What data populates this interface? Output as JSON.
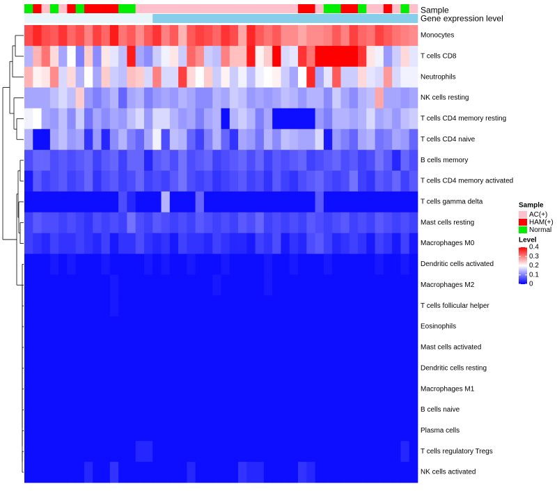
{
  "chart_data": {
    "type": "heatmap",
    "title": "",
    "colorscale": {
      "low": "#0000FF",
      "mid": "#FFFFFF",
      "high": "#FF0000",
      "min": 0,
      "mid_value": 0.2,
      "max": 0.4
    },
    "annotation_tracks": [
      {
        "label": "Sample"
      },
      {
        "label": "Gene expression level"
      }
    ],
    "sample_types": [
      "N",
      "H",
      "A",
      "N",
      "A",
      "H",
      "N",
      "H",
      "H",
      "H",
      "H",
      "N",
      "N",
      "A",
      "A",
      "A",
      "A",
      "A",
      "A",
      "A",
      "A",
      "A",
      "A",
      "A",
      "A",
      "A",
      "A",
      "A",
      "A",
      "A",
      "A",
      "A",
      "H",
      "H",
      "A",
      "N",
      "N",
      "H",
      "H",
      "N",
      "A",
      "A",
      "H",
      "A",
      "N",
      "A"
    ],
    "expr_groups": [
      "L",
      "L",
      "L",
      "L",
      "L",
      "L",
      "L",
      "L",
      "L",
      "L",
      "L",
      "L",
      "L",
      "L",
      "L",
      "H",
      "H",
      "H",
      "H",
      "H",
      "H",
      "H",
      "H",
      "H",
      "H",
      "H",
      "H",
      "H",
      "H",
      "H",
      "H",
      "H",
      "H",
      "H",
      "H",
      "H",
      "H",
      "H",
      "H",
      "H",
      "H",
      "H",
      "H",
      "H",
      "H",
      "H"
    ],
    "expr_group_colors": {
      "L": "#EAF4FB",
      "H": "#87CEEB"
    },
    "cell_types": [
      "Monocytes",
      "T cells CD8",
      "Neutrophils",
      "NK cells resting",
      "T cells CD4 memory resting",
      "T cells CD4 naive",
      "B cells memory",
      "T cells CD4 memory activated",
      "T cells gamma delta",
      "Mast cells resting",
      "Macrophages M0",
      "Dendritic cells activated",
      "Macrophages M2",
      "T cells follicular helper",
      "Eosinophils",
      "Mast cells activated",
      "Dendritic cells resting",
      "Macrophages M1",
      "B cells naive",
      "Plasma cells",
      "T cells regulatory  Tregs",
      "NK cells activated"
    ],
    "values": [
      [
        0.34,
        0.37,
        0.34,
        0.33,
        0.36,
        0.32,
        0.34,
        0.3,
        0.35,
        0.32,
        0.38,
        0.31,
        0.33,
        0.29,
        0.33,
        0.36,
        0.3,
        0.33,
        0.26,
        0.33,
        0.35,
        0.34,
        0.32,
        0.36,
        0.34,
        0.27,
        0.37,
        0.33,
        0.31,
        0.33,
        0.29,
        0.29,
        0.27,
        0.29,
        0.29,
        0.3,
        0.33,
        0.3,
        0.35,
        0.32,
        0.31,
        0.35,
        0.33,
        0.31,
        0.3,
        0.29
      ],
      [
        0.14,
        0.26,
        0.31,
        0.23,
        0.13,
        0.2,
        0.1,
        0.24,
        0.11,
        0.22,
        0.18,
        0.15,
        0.38,
        0.13,
        0.11,
        0.16,
        0.19,
        0.22,
        0.16,
        0.32,
        0.29,
        0.16,
        0.15,
        0.3,
        0.25,
        0.25,
        0.38,
        0.21,
        0.24,
        0.4,
        0.17,
        0.18,
        0.36,
        0.31,
        0.4,
        0.4,
        0.4,
        0.4,
        0.4,
        0.36,
        0.22,
        0.19,
        0.12,
        0.16,
        0.23,
        0.18
      ],
      [
        0.26,
        0.21,
        0.22,
        0.29,
        0.17,
        0.23,
        0.14,
        0.2,
        0.13,
        0.24,
        0.16,
        0.15,
        0.25,
        0.24,
        0.17,
        0.3,
        0.17,
        0.17,
        0.35,
        0.23,
        0.2,
        0.24,
        0.16,
        0.21,
        0.16,
        0.19,
        0.15,
        0.19,
        0.2,
        0.21,
        0.16,
        0.13,
        0.2,
        0.37,
        0.13,
        0.18,
        0.33,
        0.16,
        0.16,
        0.23,
        0.18,
        0.17,
        0.28,
        0.17,
        0.19,
        0.19
      ],
      [
        0.13,
        0.13,
        0.13,
        0.15,
        0.17,
        0.15,
        0.24,
        0.12,
        0.1,
        0.12,
        0.14,
        0.08,
        0.13,
        0.14,
        0.1,
        0.12,
        0.13,
        0.12,
        0.14,
        0.13,
        0.11,
        0.11,
        0.14,
        0.13,
        0.16,
        0.15,
        0.12,
        0.13,
        0.12,
        0.13,
        0.15,
        0.14,
        0.12,
        0.14,
        0.14,
        0.11,
        0.16,
        0.13,
        0.11,
        0.14,
        0.15,
        0.27,
        0.13,
        0.13,
        0.12,
        0.13
      ],
      [
        0.19,
        0.2,
        0.13,
        0.12,
        0.15,
        0.11,
        0.16,
        0.09,
        0.13,
        0.11,
        0.13,
        0.12,
        0.15,
        0.17,
        0.12,
        0.17,
        0.17,
        0.14,
        0.12,
        0.13,
        0.1,
        0.13,
        0.14,
        0.01,
        0.14,
        0.16,
        0.14,
        0.1,
        0.13,
        0.01,
        0.01,
        0.01,
        0.01,
        0.01,
        0.12,
        0.1,
        0.14,
        0.14,
        0.13,
        0.14,
        0.17,
        0.13,
        0.14,
        0.12,
        0.15,
        0.16
      ],
      [
        0.14,
        0.01,
        0.01,
        0.13,
        0.15,
        0.12,
        0.13,
        0.04,
        0.12,
        0.03,
        0.11,
        0.14,
        0.1,
        0.08,
        0.13,
        0.19,
        0.06,
        0.15,
        0.14,
        0.08,
        0.05,
        0.1,
        0.14,
        0.08,
        0.04,
        0.13,
        0.12,
        0.09,
        0.14,
        0.11,
        0.15,
        0.14,
        0.13,
        0.13,
        0.17,
        0.02,
        0.12,
        0.1,
        0.08,
        0.13,
        0.14,
        0.09,
        0.1,
        0.13,
        0.12,
        0.08
      ],
      [
        0.06,
        0.08,
        0.08,
        0.06,
        0.07,
        0.06,
        0.07,
        0.08,
        0.05,
        0.07,
        0.08,
        0.05,
        0.08,
        0.08,
        0.03,
        0.07,
        0.08,
        0.06,
        0.09,
        0.06,
        0.07,
        0.08,
        0.05,
        0.06,
        0.07,
        0.08,
        0.06,
        0.08,
        0.05,
        0.07,
        0.06,
        0.07,
        0.08,
        0.05,
        0.06,
        0.07,
        0.08,
        0.06,
        0.07,
        0.05,
        0.06,
        0.09,
        0.07,
        0.03,
        0.08,
        0.06
      ],
      [
        0.02,
        0.07,
        0.05,
        0.06,
        0.07,
        0.05,
        0.06,
        0.08,
        0.04,
        0.06,
        0.07,
        0.05,
        0.06,
        0.08,
        0.05,
        0.06,
        0.05,
        0.07,
        0.09,
        0.06,
        0.05,
        0.06,
        0.04,
        0.05,
        0.06,
        0.07,
        0.05,
        0.06,
        0.04,
        0.07,
        0.05,
        0.04,
        0.06,
        0.07,
        0.08,
        0.06,
        0.05,
        0.06,
        0.09,
        0.05,
        0.04,
        0.07,
        0.06,
        0.08,
        0.05,
        0.07
      ],
      [
        0.01,
        0.01,
        0.01,
        0.01,
        0.01,
        0.01,
        0.01,
        0.01,
        0.01,
        0.01,
        0.01,
        0.06,
        0.03,
        0.01,
        0.01,
        0.01,
        0.14,
        0.01,
        0.01,
        0.01,
        0.08,
        0.01,
        0.01,
        0.01,
        0.01,
        0.01,
        0.01,
        0.01,
        0.01,
        0.01,
        0.01,
        0.01,
        0.01,
        0.01,
        0.07,
        0.01,
        0.01,
        0.01,
        0.01,
        0.01,
        0.01,
        0.01,
        0.01,
        0.01,
        0.01,
        0.01
      ],
      [
        0.05,
        0.07,
        0.06,
        0.06,
        0.05,
        0.06,
        0.05,
        0.04,
        0.06,
        0.05,
        0.06,
        0.05,
        0.09,
        0.06,
        0.05,
        0.07,
        0.06,
        0.05,
        0.06,
        0.05,
        0.07,
        0.06,
        0.05,
        0.06,
        0.05,
        0.07,
        0.06,
        0.08,
        0.05,
        0.06,
        0.05,
        0.06,
        0.05,
        0.07,
        0.06,
        0.05,
        0.06,
        0.07,
        0.05,
        0.06,
        0.05,
        0.07,
        0.06,
        0.05,
        0.06,
        0.05
      ],
      [
        0.05,
        0.04,
        0.03,
        0.05,
        0.04,
        0.04,
        0.05,
        0.04,
        0.03,
        0.05,
        0.02,
        0.04,
        0.04,
        0.06,
        0.04,
        0.03,
        0.04,
        0.02,
        0.05,
        0.04,
        0.04,
        0.03,
        0.05,
        0.04,
        0.03,
        0.03,
        0.02,
        0.05,
        0.04,
        0.06,
        0.02,
        0.04,
        0.03,
        0.06,
        0.07,
        0.05,
        0.03,
        0.04,
        0.05,
        0.04,
        0.02,
        0.05,
        0.04,
        0.02,
        0.05,
        0.02
      ],
      [
        0.01,
        0.01,
        0.01,
        0.02,
        0.01,
        0.02,
        0.01,
        0.01,
        0.01,
        0.02,
        0.01,
        0.01,
        0.01,
        0.01,
        0.02,
        0.01,
        0.02,
        0.01,
        0.01,
        0.02,
        0.01,
        0.01,
        0.01,
        0.02,
        0.01,
        0.01,
        0.01,
        0.01,
        0.02,
        0.01,
        0.01,
        0.02,
        0.01,
        0.01,
        0.01,
        0.02,
        0.01,
        0.01,
        0.01,
        0.01,
        0.01,
        0.02,
        0.01,
        0.01,
        0.02,
        0.01
      ],
      [
        0.01,
        0.01,
        0.01,
        0.01,
        0.01,
        0.01,
        0.01,
        0.01,
        0.01,
        0.01,
        0.02,
        0.01,
        0.01,
        0.01,
        0.01,
        0.01,
        0.01,
        0.01,
        0.01,
        0.01,
        0.01,
        0.01,
        0.02,
        0.01,
        0.01,
        0.01,
        0.01,
        0.01,
        0.02,
        0.01,
        0.01,
        0.01,
        0.01,
        0.01,
        0.01,
        0.01,
        0.01,
        0.01,
        0.01,
        0.01,
        0.01,
        0.01,
        0.01,
        0.01,
        0.01,
        0.01
      ],
      [
        0.01,
        0.01,
        0.01,
        0.01,
        0.01,
        0.01,
        0.01,
        0.01,
        0.01,
        0.01,
        0.02,
        0.01,
        0.01,
        0.01,
        0.01,
        0.01,
        0.01,
        0.01,
        0.01,
        0.01,
        0.01,
        0.01,
        0.01,
        0.01,
        0.01,
        0.01,
        0.01,
        0.01,
        0.01,
        0.01,
        0.01,
        0.01,
        0.01,
        0.01,
        0.01,
        0.01,
        0.01,
        0.01,
        0.01,
        0.01,
        0.01,
        0.01,
        0.01,
        0.01,
        0.01,
        0.01
      ],
      [
        0.01,
        0.01,
        0.01,
        0.01,
        0.01,
        0.01,
        0.01,
        0.01,
        0.01,
        0.01,
        0.01,
        0.01,
        0.01,
        0.01,
        0.01,
        0.01,
        0.01,
        0.01,
        0.01,
        0.01,
        0.01,
        0.01,
        0.01,
        0.01,
        0.01,
        0.01,
        0.01,
        0.01,
        0.01,
        0.01,
        0.01,
        0.01,
        0.01,
        0.01,
        0.01,
        0.01,
        0.01,
        0.01,
        0.01,
        0.01,
        0.01,
        0.01,
        0.01,
        0.01,
        0.01,
        0.01
      ],
      [
        0.01,
        0.01,
        0.01,
        0.01,
        0.01,
        0.01,
        0.01,
        0.01,
        0.01,
        0.01,
        0.01,
        0.01,
        0.01,
        0.01,
        0.01,
        0.01,
        0.01,
        0.01,
        0.01,
        0.01,
        0.01,
        0.01,
        0.01,
        0.01,
        0.01,
        0.01,
        0.01,
        0.01,
        0.01,
        0.01,
        0.01,
        0.01,
        0.01,
        0.01,
        0.01,
        0.01,
        0.01,
        0.01,
        0.01,
        0.01,
        0.01,
        0.01,
        0.01,
        0.01,
        0.01,
        0.01
      ],
      [
        0.01,
        0.01,
        0.01,
        0.01,
        0.01,
        0.01,
        0.01,
        0.01,
        0.01,
        0.01,
        0.01,
        0.01,
        0.01,
        0.01,
        0.01,
        0.01,
        0.01,
        0.01,
        0.01,
        0.01,
        0.01,
        0.01,
        0.01,
        0.01,
        0.01,
        0.01,
        0.01,
        0.01,
        0.01,
        0.01,
        0.01,
        0.01,
        0.01,
        0.01,
        0.01,
        0.01,
        0.01,
        0.01,
        0.01,
        0.01,
        0.01,
        0.01,
        0.01,
        0.01,
        0.01,
        0.01
      ],
      [
        0.01,
        0.01,
        0.01,
        0.01,
        0.01,
        0.01,
        0.01,
        0.01,
        0.01,
        0.01,
        0.01,
        0.01,
        0.01,
        0.01,
        0.01,
        0.01,
        0.01,
        0.01,
        0.01,
        0.01,
        0.01,
        0.01,
        0.01,
        0.01,
        0.01,
        0.01,
        0.01,
        0.01,
        0.01,
        0.01,
        0.01,
        0.01,
        0.01,
        0.01,
        0.01,
        0.01,
        0.01,
        0.01,
        0.01,
        0.01,
        0.01,
        0.01,
        0.01,
        0.01,
        0.01,
        0.01
      ],
      [
        0.01,
        0.01,
        0.01,
        0.01,
        0.01,
        0.01,
        0.01,
        0.01,
        0.01,
        0.01,
        0.01,
        0.01,
        0.01,
        0.01,
        0.01,
        0.01,
        0.01,
        0.01,
        0.01,
        0.01,
        0.01,
        0.01,
        0.01,
        0.01,
        0.01,
        0.01,
        0.01,
        0.01,
        0.01,
        0.01,
        0.01,
        0.01,
        0.01,
        0.01,
        0.01,
        0.01,
        0.01,
        0.01,
        0.01,
        0.01,
        0.01,
        0.01,
        0.01,
        0.01,
        0.01,
        0.01
      ],
      [
        0.01,
        0.01,
        0.01,
        0.01,
        0.01,
        0.01,
        0.01,
        0.01,
        0.01,
        0.01,
        0.01,
        0.01,
        0.01,
        0.01,
        0.01,
        0.01,
        0.01,
        0.01,
        0.01,
        0.01,
        0.01,
        0.01,
        0.01,
        0.01,
        0.01,
        0.01,
        0.01,
        0.01,
        0.01,
        0.01,
        0.01,
        0.01,
        0.01,
        0.01,
        0.01,
        0.01,
        0.01,
        0.01,
        0.01,
        0.01,
        0.01,
        0.01,
        0.01,
        0.01,
        0.01,
        0.01
      ],
      [
        0.01,
        0.01,
        0.01,
        0.01,
        0.01,
        0.01,
        0.01,
        0.01,
        0.01,
        0.01,
        0.01,
        0.01,
        0.01,
        0.03,
        0.03,
        0.01,
        0.01,
        0.01,
        0.01,
        0.01,
        0.01,
        0.01,
        0.01,
        0.01,
        0.01,
        0.01,
        0.01,
        0.01,
        0.01,
        0.01,
        0.01,
        0.01,
        0.01,
        0.01,
        0.01,
        0.01,
        0.01,
        0.01,
        0.01,
        0.01,
        0.01,
        0.01,
        0.01,
        0.01,
        0.03,
        0.01
      ],
      [
        0.01,
        0.01,
        0.01,
        0.01,
        0.01,
        0.01,
        0.01,
        0.03,
        0.01,
        0.01,
        0.04,
        0.01,
        0.01,
        0.01,
        0.01,
        0.01,
        0.01,
        0.01,
        0.01,
        0.03,
        0.01,
        0.01,
        0.01,
        0.01,
        0.01,
        0.04,
        0.03,
        0.03,
        0.01,
        0.01,
        0.01,
        0.01,
        0.04,
        0.03,
        0.01,
        0.01,
        0.01,
        0.01,
        0.01,
        0.01,
        0.01,
        0.01,
        0.01,
        0.01,
        0.01,
        0.01
      ]
    ],
    "legend": {
      "sample_title": "Sample",
      "sample_entries": [
        {
          "code": "A",
          "label": "AC(+)",
          "color": "#FFC0CB"
        },
        {
          "code": "H",
          "label": "HAM(+)",
          "color": "#FF0000"
        },
        {
          "code": "N",
          "label": "Normal",
          "color": "#00EE00"
        }
      ],
      "level_title": "Level",
      "level_ticks": [
        {
          "value": 0.4,
          "label": "0.4"
        },
        {
          "value": 0.3,
          "label": "0.3"
        },
        {
          "value": 0.2,
          "label": "0.2"
        },
        {
          "value": 0.1,
          "label": "0.1"
        },
        {
          "value": 0,
          "label": "0"
        }
      ]
    }
  }
}
